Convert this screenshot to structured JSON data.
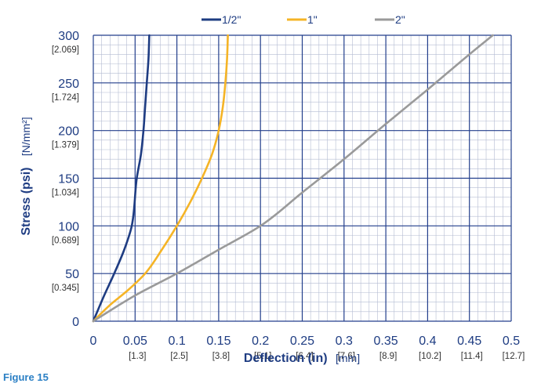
{
  "figure_label": "Figure 15",
  "chart_data": {
    "type": "line",
    "title": "",
    "xlabel": "Deflection (in)",
    "xlabel_unit": "[mm]",
    "ylabel": "Stress (psi)",
    "ylabel_unit": "[N/mm²]",
    "xlim": [
      0,
      0.5
    ],
    "ylim": [
      0,
      300
    ],
    "grid": true,
    "legend_position": "top-center",
    "x_ticks": [
      "0",
      "0.05",
      "0.1",
      "0.15",
      "0.2",
      "0.25",
      "0.3",
      "0.35",
      "0.4",
      "0.45",
      "0.5"
    ],
    "x_ticks_mm": [
      "",
      "[1.3]",
      "[2.5]",
      "[3.8]",
      "[5.1]",
      "[6.4]",
      "[7.6]",
      "[8.9]",
      "[10.2]",
      "[11.4]",
      "[12.7]"
    ],
    "y_ticks": [
      "0",
      "50",
      "100",
      "150",
      "200",
      "250",
      "300"
    ],
    "y_ticks_nmm2": [
      "",
      "[0.345]",
      "[0.689]",
      "[1.034]",
      "[1.379]",
      "[1.724]",
      "[2.069]"
    ],
    "series": [
      {
        "name": "1/2\"",
        "color": "#1e3c82",
        "x": [
          0,
          0.012,
          0.025,
          0.037,
          0.046,
          0.052,
          0.057,
          0.06,
          0.062,
          0.064,
          0.066,
          0.067
        ],
        "y": [
          0,
          25,
          50,
          75,
          100,
          150,
          175,
          200,
          225,
          250,
          275,
          300
        ]
      },
      {
        "name": "1\"",
        "color": "#f5b426",
        "x": [
          0,
          0.02,
          0.042,
          0.062,
          0.082,
          0.1,
          0.116,
          0.13,
          0.142,
          0.15,
          0.155,
          0.158,
          0.16,
          0.161
        ],
        "y": [
          0,
          17,
          33,
          50,
          75,
          100,
          125,
          150,
          175,
          200,
          225,
          250,
          275,
          300
        ]
      },
      {
        "name": "2\"",
        "color": "#9a9a9a",
        "x": [
          0,
          0.05,
          0.1,
          0.15,
          0.2,
          0.25,
          0.3,
          0.35,
          0.4,
          0.45,
          0.478
        ],
        "y": [
          0,
          27,
          50,
          75,
          100,
          135,
          170,
          207,
          243,
          280,
          300
        ]
      }
    ]
  }
}
